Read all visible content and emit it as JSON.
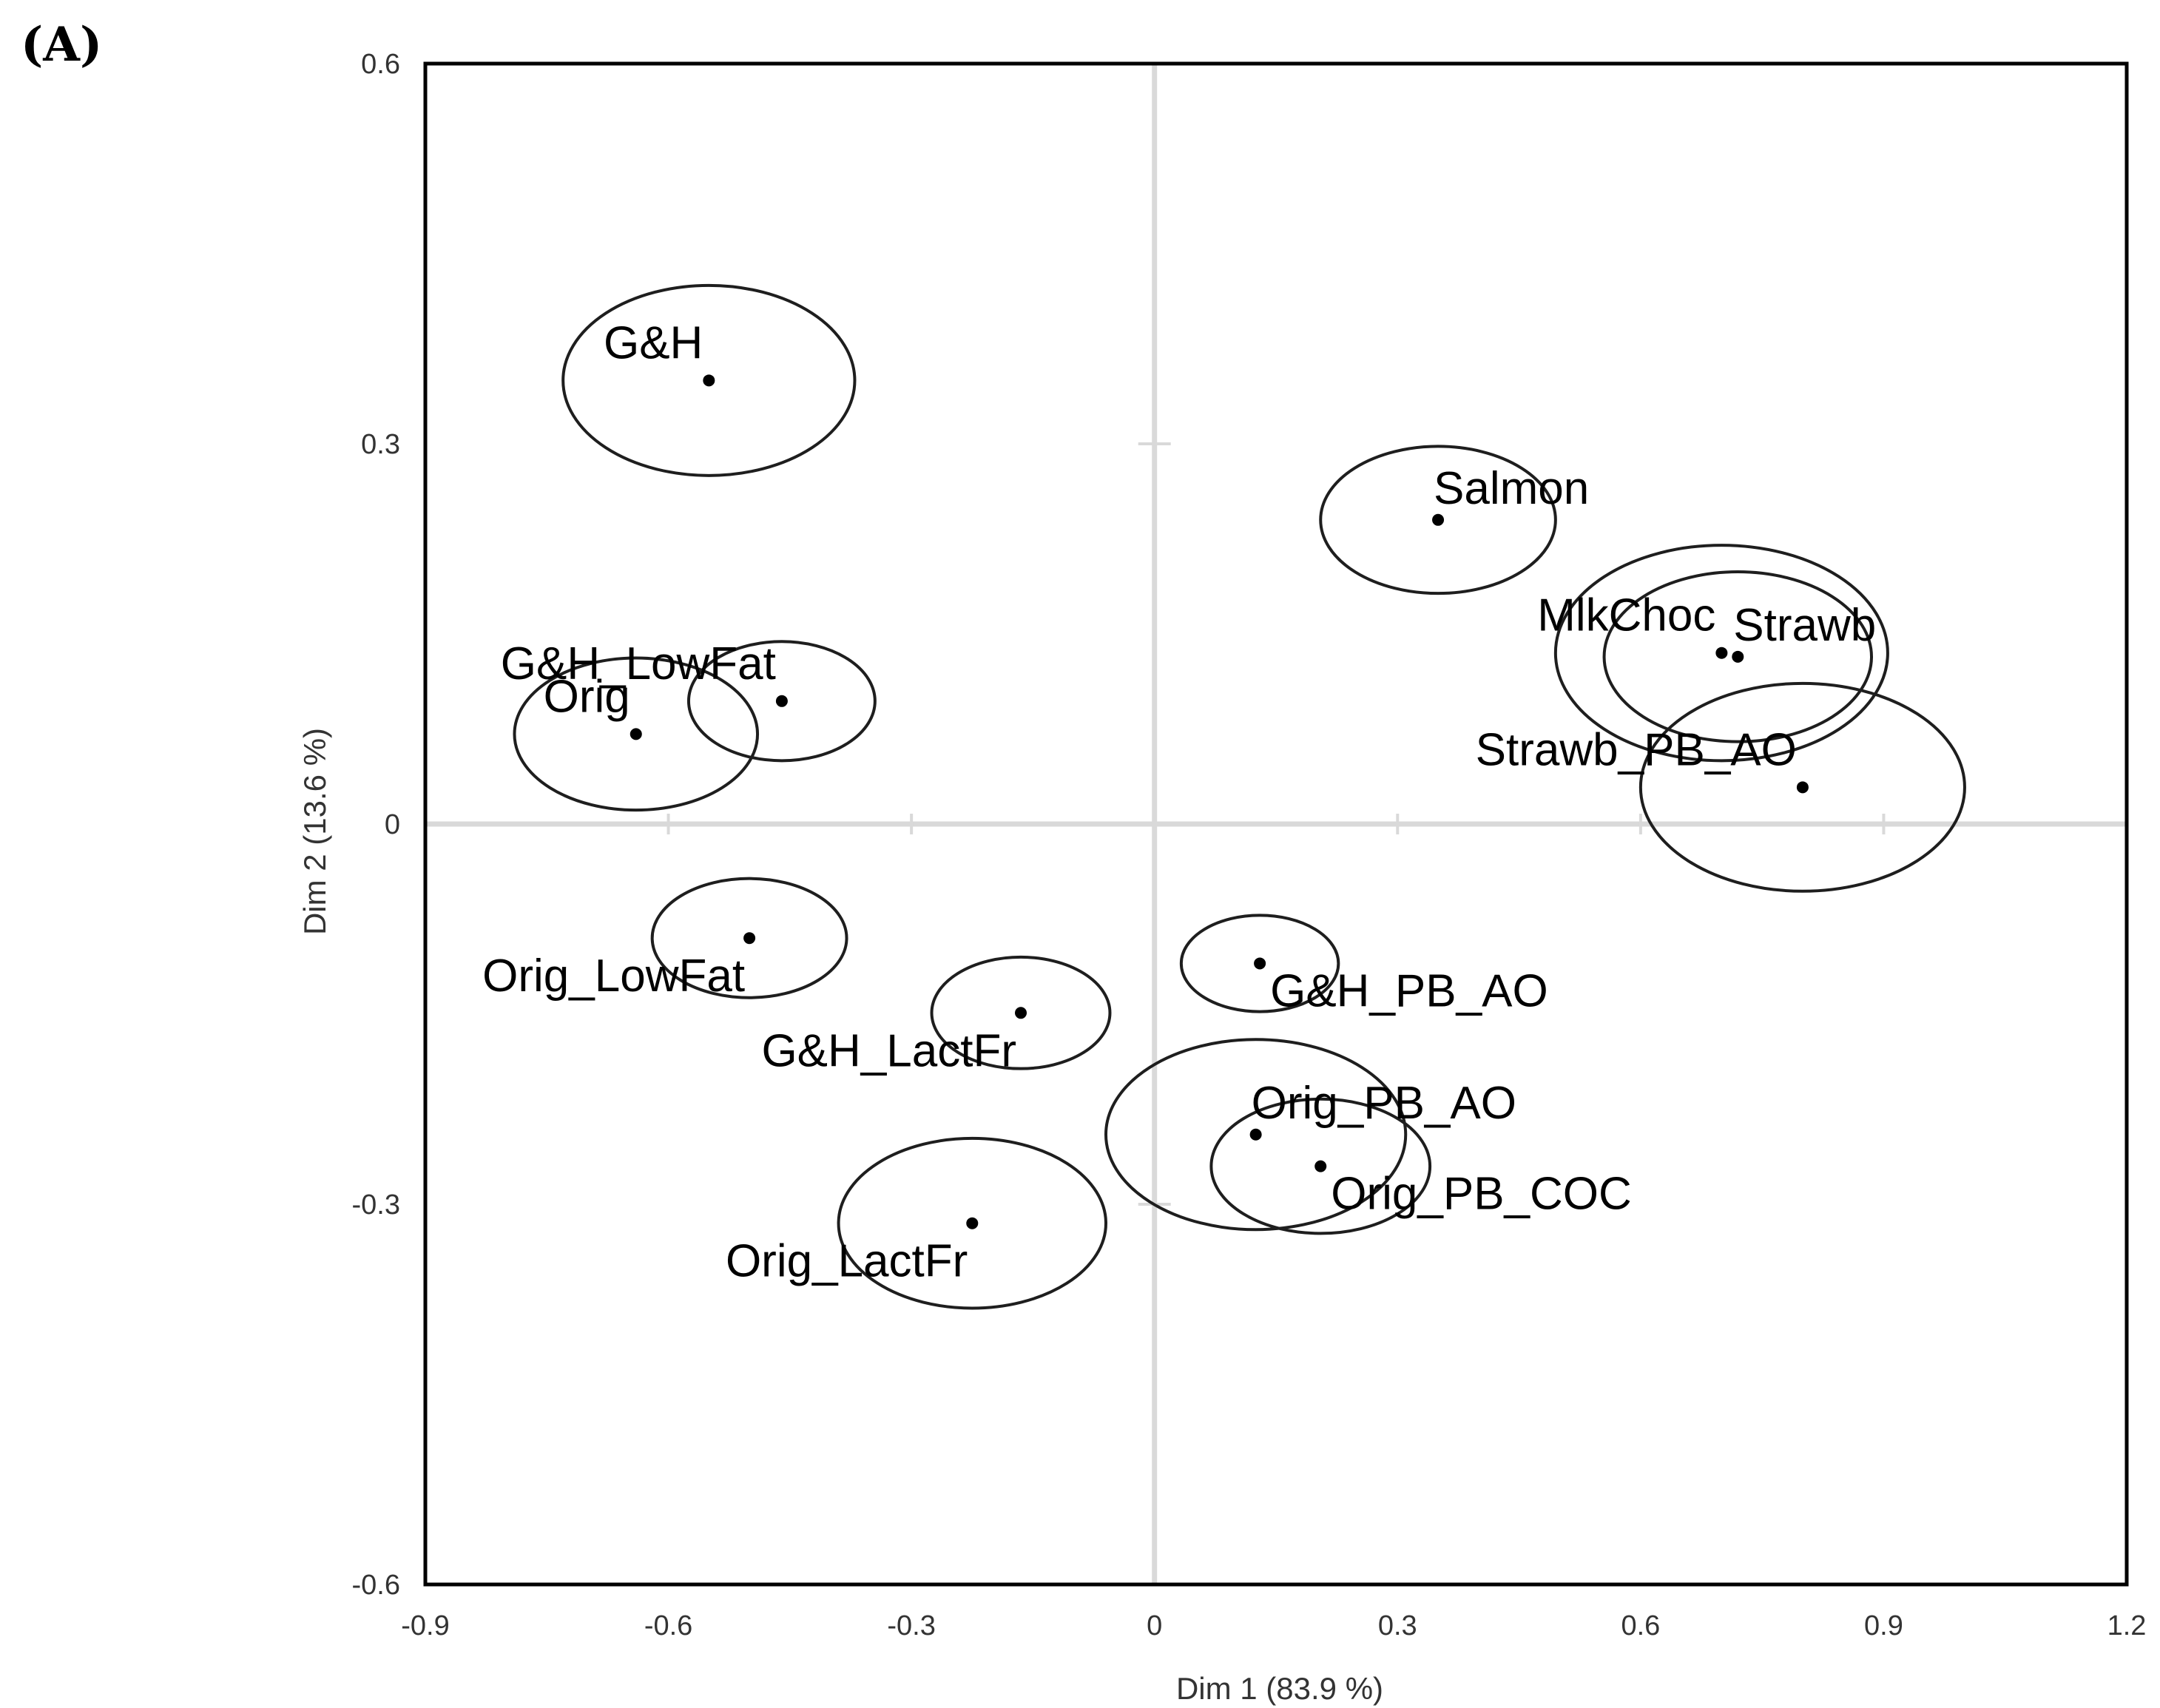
{
  "panel_label": "(A)",
  "chart_data": {
    "type": "scatter",
    "title": "",
    "xlabel": "Dim 1 (83.9 %)",
    "ylabel": "Dim 2 (13.6 %)",
    "xlim": [
      -0.9,
      1.2
    ],
    "ylim": [
      -0.6,
      0.6
    ],
    "xticks": [
      -0.9,
      -0.6,
      -0.3,
      0,
      0.3,
      0.6,
      0.9,
      1.2
    ],
    "yticks": [
      -0.6,
      -0.3,
      0,
      0.3,
      0.6
    ],
    "xtick_labels": [
      "-0.9",
      "-0.6",
      "-0.3",
      "0",
      "0.3",
      "0.6",
      "0.9",
      "1.2"
    ],
    "ytick_labels": [
      "-0.6",
      "-0.3",
      "0",
      "0.3",
      "0.6"
    ],
    "grid": false,
    "zero_lines": true,
    "points": [
      {
        "label": "G&H",
        "x": -0.55,
        "y": 0.35,
        "rx": 0.18,
        "ry": 0.075,
        "label_anchor": "above-left"
      },
      {
        "label": "Salmon",
        "x": 0.35,
        "y": 0.24,
        "rx": 0.145,
        "ry": 0.058,
        "label_anchor": "above-right"
      },
      {
        "label": "MlkChoc",
        "x": 0.7,
        "y": 0.135,
        "rx": 0.205,
        "ry": 0.085,
        "label_anchor": "above-left"
      },
      {
        "label": "Strawb",
        "x": 0.72,
        "y": 0.132,
        "rx": 0.165,
        "ry": 0.067,
        "label_anchor": "above-right"
      },
      {
        "label": "G&H_LowFat",
        "x": -0.46,
        "y": 0.097,
        "rx": 0.115,
        "ry": 0.047,
        "label_anchor": "above-left"
      },
      {
        "label": "Orig",
        "x": -0.64,
        "y": 0.071,
        "rx": 0.15,
        "ry": 0.06,
        "label_anchor": "above-left"
      },
      {
        "label": "Strawb_PB_AO",
        "x": 0.8,
        "y": 0.029,
        "rx": 0.2,
        "ry": 0.082,
        "label_anchor": "above-left"
      },
      {
        "label": "Orig_LowFat",
        "x": -0.5,
        "y": -0.09,
        "rx": 0.12,
        "ry": 0.047,
        "label_anchor": "below-left"
      },
      {
        "label": "G&H_PB_AO",
        "x": 0.13,
        "y": -0.11,
        "rx": 0.097,
        "ry": 0.038,
        "label_anchor": "below-right"
      },
      {
        "label": "G&H_LactFr",
        "x": -0.165,
        "y": -0.149,
        "rx": 0.11,
        "ry": 0.044,
        "label_anchor": "below-left"
      },
      {
        "label": "Orig_PB_AO",
        "x": 0.125,
        "y": -0.245,
        "rx": 0.185,
        "ry": 0.075,
        "label_anchor": "above-right"
      },
      {
        "label": "Orig_PB_COC",
        "x": 0.205,
        "y": -0.27,
        "rx": 0.135,
        "ry": 0.053,
        "label_anchor": "below-right"
      },
      {
        "label": "Orig_LactFr",
        "x": -0.225,
        "y": -0.315,
        "rx": 0.165,
        "ry": 0.067,
        "label_anchor": "below-left"
      }
    ]
  }
}
